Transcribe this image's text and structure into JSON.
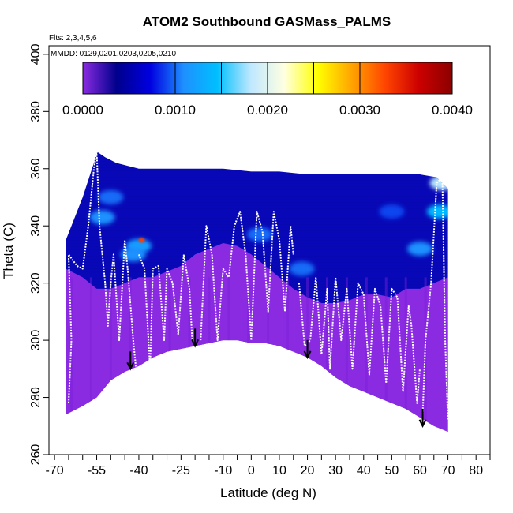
{
  "chart_data": {
    "type": "heatmap",
    "title": "ATOM2 Southbound GASMass_PALMS",
    "subtitle_flights": "Flts: 2,3,4,5,6",
    "subtitle_dates": "MMDD: 0129,0201,0203,0205,0210",
    "xlabel": "Latitude (deg N)",
    "ylabel": "Theta (C)",
    "xlim": [
      -72,
      85
    ],
    "ylim": [
      260,
      403
    ],
    "x_ticks": [
      "-70",
      "-55",
      "-40",
      "-25",
      "-10",
      "0",
      "10",
      "20",
      "30",
      "40",
      "50",
      "60",
      "70",
      "80"
    ],
    "x_tick_values": [
      -70,
      -55,
      -40,
      -25,
      -10,
      0,
      10,
      20,
      30,
      40,
      50,
      60,
      70,
      80
    ],
    "x_minor_ticks": [
      -65,
      -60,
      -50,
      -45,
      -35,
      -30,
      -20,
      -15,
      -5,
      5,
      15,
      25,
      35,
      45,
      55,
      65,
      75,
      85
    ],
    "y_ticks": [
      "260",
      "280",
      "300",
      "320",
      "340",
      "360",
      "380",
      "400"
    ],
    "y_tick_values": [
      260,
      280,
      300,
      320,
      340,
      360,
      380,
      400
    ],
    "colorbar": {
      "min": 0,
      "max": 0.004,
      "labels": [
        "0.0000",
        "0.0010",
        "0.0020",
        "0.0030",
        "0.0040"
      ],
      "label_values": [
        0,
        0.001,
        0.002,
        0.003,
        0.004
      ],
      "colors": [
        "#8a2be2",
        "#00008b",
        "#0000e0",
        "#1e90ff",
        "#00bfff",
        "#bfe8ff",
        "#ffffe0",
        "#ffff00",
        "#ffa500",
        "#ff4500",
        "#cc0000",
        "#8b0000"
      ]
    },
    "lower_boundary": [
      [
        -66,
        274
      ],
      [
        -60,
        277
      ],
      [
        -55,
        280
      ],
      [
        -50,
        286
      ],
      [
        -45,
        289
      ],
      [
        -40,
        291
      ],
      [
        -35,
        294
      ],
      [
        -30,
        296
      ],
      [
        -25,
        297
      ],
      [
        -20,
        298
      ],
      [
        -15,
        299
      ],
      [
        -10,
        300
      ],
      [
        -5,
        300
      ],
      [
        0,
        299
      ],
      [
        5,
        299
      ],
      [
        10,
        298
      ],
      [
        15,
        296
      ],
      [
        20,
        294
      ],
      [
        25,
        291
      ],
      [
        30,
        287
      ],
      [
        35,
        284
      ],
      [
        40,
        282
      ],
      [
        45,
        280
      ],
      [
        50,
        278
      ],
      [
        55,
        276
      ],
      [
        60,
        273
      ],
      [
        65,
        270
      ],
      [
        70,
        268
      ]
    ],
    "upper_boundary": [
      [
        -66,
        335
      ],
      [
        -64,
        340
      ],
      [
        -62,
        345
      ],
      [
        -60,
        350
      ],
      [
        -58,
        356
      ],
      [
        -56,
        362
      ],
      [
        -55,
        366
      ],
      [
        -52,
        364
      ],
      [
        -48,
        362
      ],
      [
        -40,
        360
      ],
      [
        -30,
        360
      ],
      [
        -20,
        360
      ],
      [
        -10,
        360
      ],
      [
        0,
        359
      ],
      [
        10,
        359
      ],
      [
        20,
        358
      ],
      [
        30,
        358
      ],
      [
        40,
        358
      ],
      [
        50,
        358
      ],
      [
        60,
        358
      ],
      [
        66,
        357
      ],
      [
        70,
        353
      ]
    ],
    "low_field_top": [
      [
        -66,
        325
      ],
      [
        -60,
        322
      ],
      [
        -55,
        318
      ],
      [
        -50,
        318
      ],
      [
        -45,
        320
      ],
      [
        -40,
        322
      ],
      [
        -35,
        322
      ],
      [
        -30,
        324
      ],
      [
        -25,
        326
      ],
      [
        -20,
        330
      ],
      [
        -15,
        332
      ],
      [
        -10,
        334
      ],
      [
        -5,
        333
      ],
      [
        0,
        330
      ],
      [
        5,
        326
      ],
      [
        10,
        322
      ],
      [
        15,
        318
      ],
      [
        20,
        315
      ],
      [
        25,
        313
      ],
      [
        30,
        313
      ],
      [
        35,
        314
      ],
      [
        40,
        316
      ],
      [
        45,
        316
      ],
      [
        50,
        315
      ],
      [
        55,
        318
      ],
      [
        60,
        318
      ],
      [
        65,
        320
      ],
      [
        70,
        322
      ]
    ],
    "bright_regions": [
      {
        "lat": -40,
        "theta": 333,
        "value": 0.0012
      },
      {
        "lat": -42,
        "theta": 330,
        "value": 0.0011
      },
      {
        "lat": -53,
        "theta": 343,
        "value": 0.0011
      },
      {
        "lat": -50,
        "theta": 350,
        "value": 0.001
      },
      {
        "lat": 67,
        "theta": 345,
        "value": 0.0014
      },
      {
        "lat": 60,
        "theta": 332,
        "value": 0.0011
      },
      {
        "lat": 50,
        "theta": 345,
        "value": 0.0009
      },
      {
        "lat": 3,
        "theta": 337,
        "value": 0.001
      },
      {
        "lat": 18,
        "theta": 325,
        "value": 0.001
      },
      {
        "lat": 22,
        "theta": 309,
        "value": 0.001
      },
      {
        "lat": 68,
        "theta": 355,
        "value": 0.0018
      },
      {
        "lat": -39,
        "theta": 335,
        "value": 0.0033
      }
    ],
    "flight_tracks": [
      {
        "name": "track-1",
        "points": [
          [
            -65,
            278
          ],
          [
            -64,
            300
          ],
          [
            -65,
            330
          ],
          [
            -62,
            326
          ],
          [
            -60,
            325
          ],
          [
            -58,
            340
          ],
          [
            -56,
            360
          ],
          [
            -55,
            366
          ],
          [
            -54,
            340
          ],
          [
            -52,
            320
          ],
          [
            -51,
            305
          ],
          [
            -50,
            320
          ],
          [
            -49,
            330
          ],
          [
            -47,
            300
          ],
          [
            -45,
            335
          ],
          [
            -44,
            325
          ],
          [
            -42,
            300
          ],
          [
            -41,
            290
          ]
        ]
      },
      {
        "name": "track-2",
        "points": [
          [
            -40,
            330
          ],
          [
            -38,
            325
          ],
          [
            -36,
            290
          ],
          [
            -35,
            325
          ],
          [
            -33,
            326
          ],
          [
            -31,
            300
          ],
          [
            -30,
            325
          ],
          [
            -28,
            320
          ],
          [
            -26,
            302
          ],
          [
            -24,
            330
          ],
          [
            -22,
            318
          ],
          [
            -21,
            300
          ]
        ]
      },
      {
        "name": "track-3",
        "points": [
          [
            -18,
            300
          ],
          [
            -16,
            340
          ],
          [
            -14,
            330
          ],
          [
            -12,
            300
          ],
          [
            -10,
            325
          ],
          [
            -8,
            322
          ],
          [
            -6,
            340
          ],
          [
            -4,
            345
          ],
          [
            -2,
            330
          ],
          [
            0,
            300
          ],
          [
            2,
            345
          ],
          [
            4,
            338
          ],
          [
            6,
            310
          ],
          [
            8,
            345
          ],
          [
            10,
            335
          ],
          [
            12,
            310
          ],
          [
            14,
            340
          ],
          [
            15,
            330
          ]
        ]
      },
      {
        "name": "track-4",
        "points": [
          [
            17,
            320
          ],
          [
            19,
            298
          ],
          [
            21,
            300
          ],
          [
            23,
            322
          ],
          [
            25,
            295
          ],
          [
            27,
            318
          ],
          [
            28,
            290
          ],
          [
            30,
            322
          ],
          [
            32,
            300
          ],
          [
            34,
            318
          ],
          [
            36,
            290
          ],
          [
            38,
            320
          ],
          [
            40,
            316
          ],
          [
            42,
            288
          ],
          [
            44,
            318
          ],
          [
            46,
            312
          ],
          [
            48,
            285
          ],
          [
            50,
            318
          ],
          [
            52,
            315
          ],
          [
            54,
            282
          ],
          [
            56,
            312
          ],
          [
            57,
            305
          ],
          [
            59,
            278
          ],
          [
            60,
            290
          ]
        ]
      },
      {
        "name": "track-5",
        "points": [
          [
            61,
            274
          ],
          [
            62,
            300
          ],
          [
            64,
            320
          ],
          [
            66,
            355
          ],
          [
            68,
            357
          ],
          [
            69,
            300
          ],
          [
            70,
            272
          ]
        ]
      }
    ],
    "arrows": [
      {
        "lat": -43,
        "theta": 290
      },
      {
        "lat": -20,
        "theta": 298
      },
      {
        "lat": 20,
        "theta": 294
      },
      {
        "lat": 61,
        "theta": 270
      }
    ]
  }
}
